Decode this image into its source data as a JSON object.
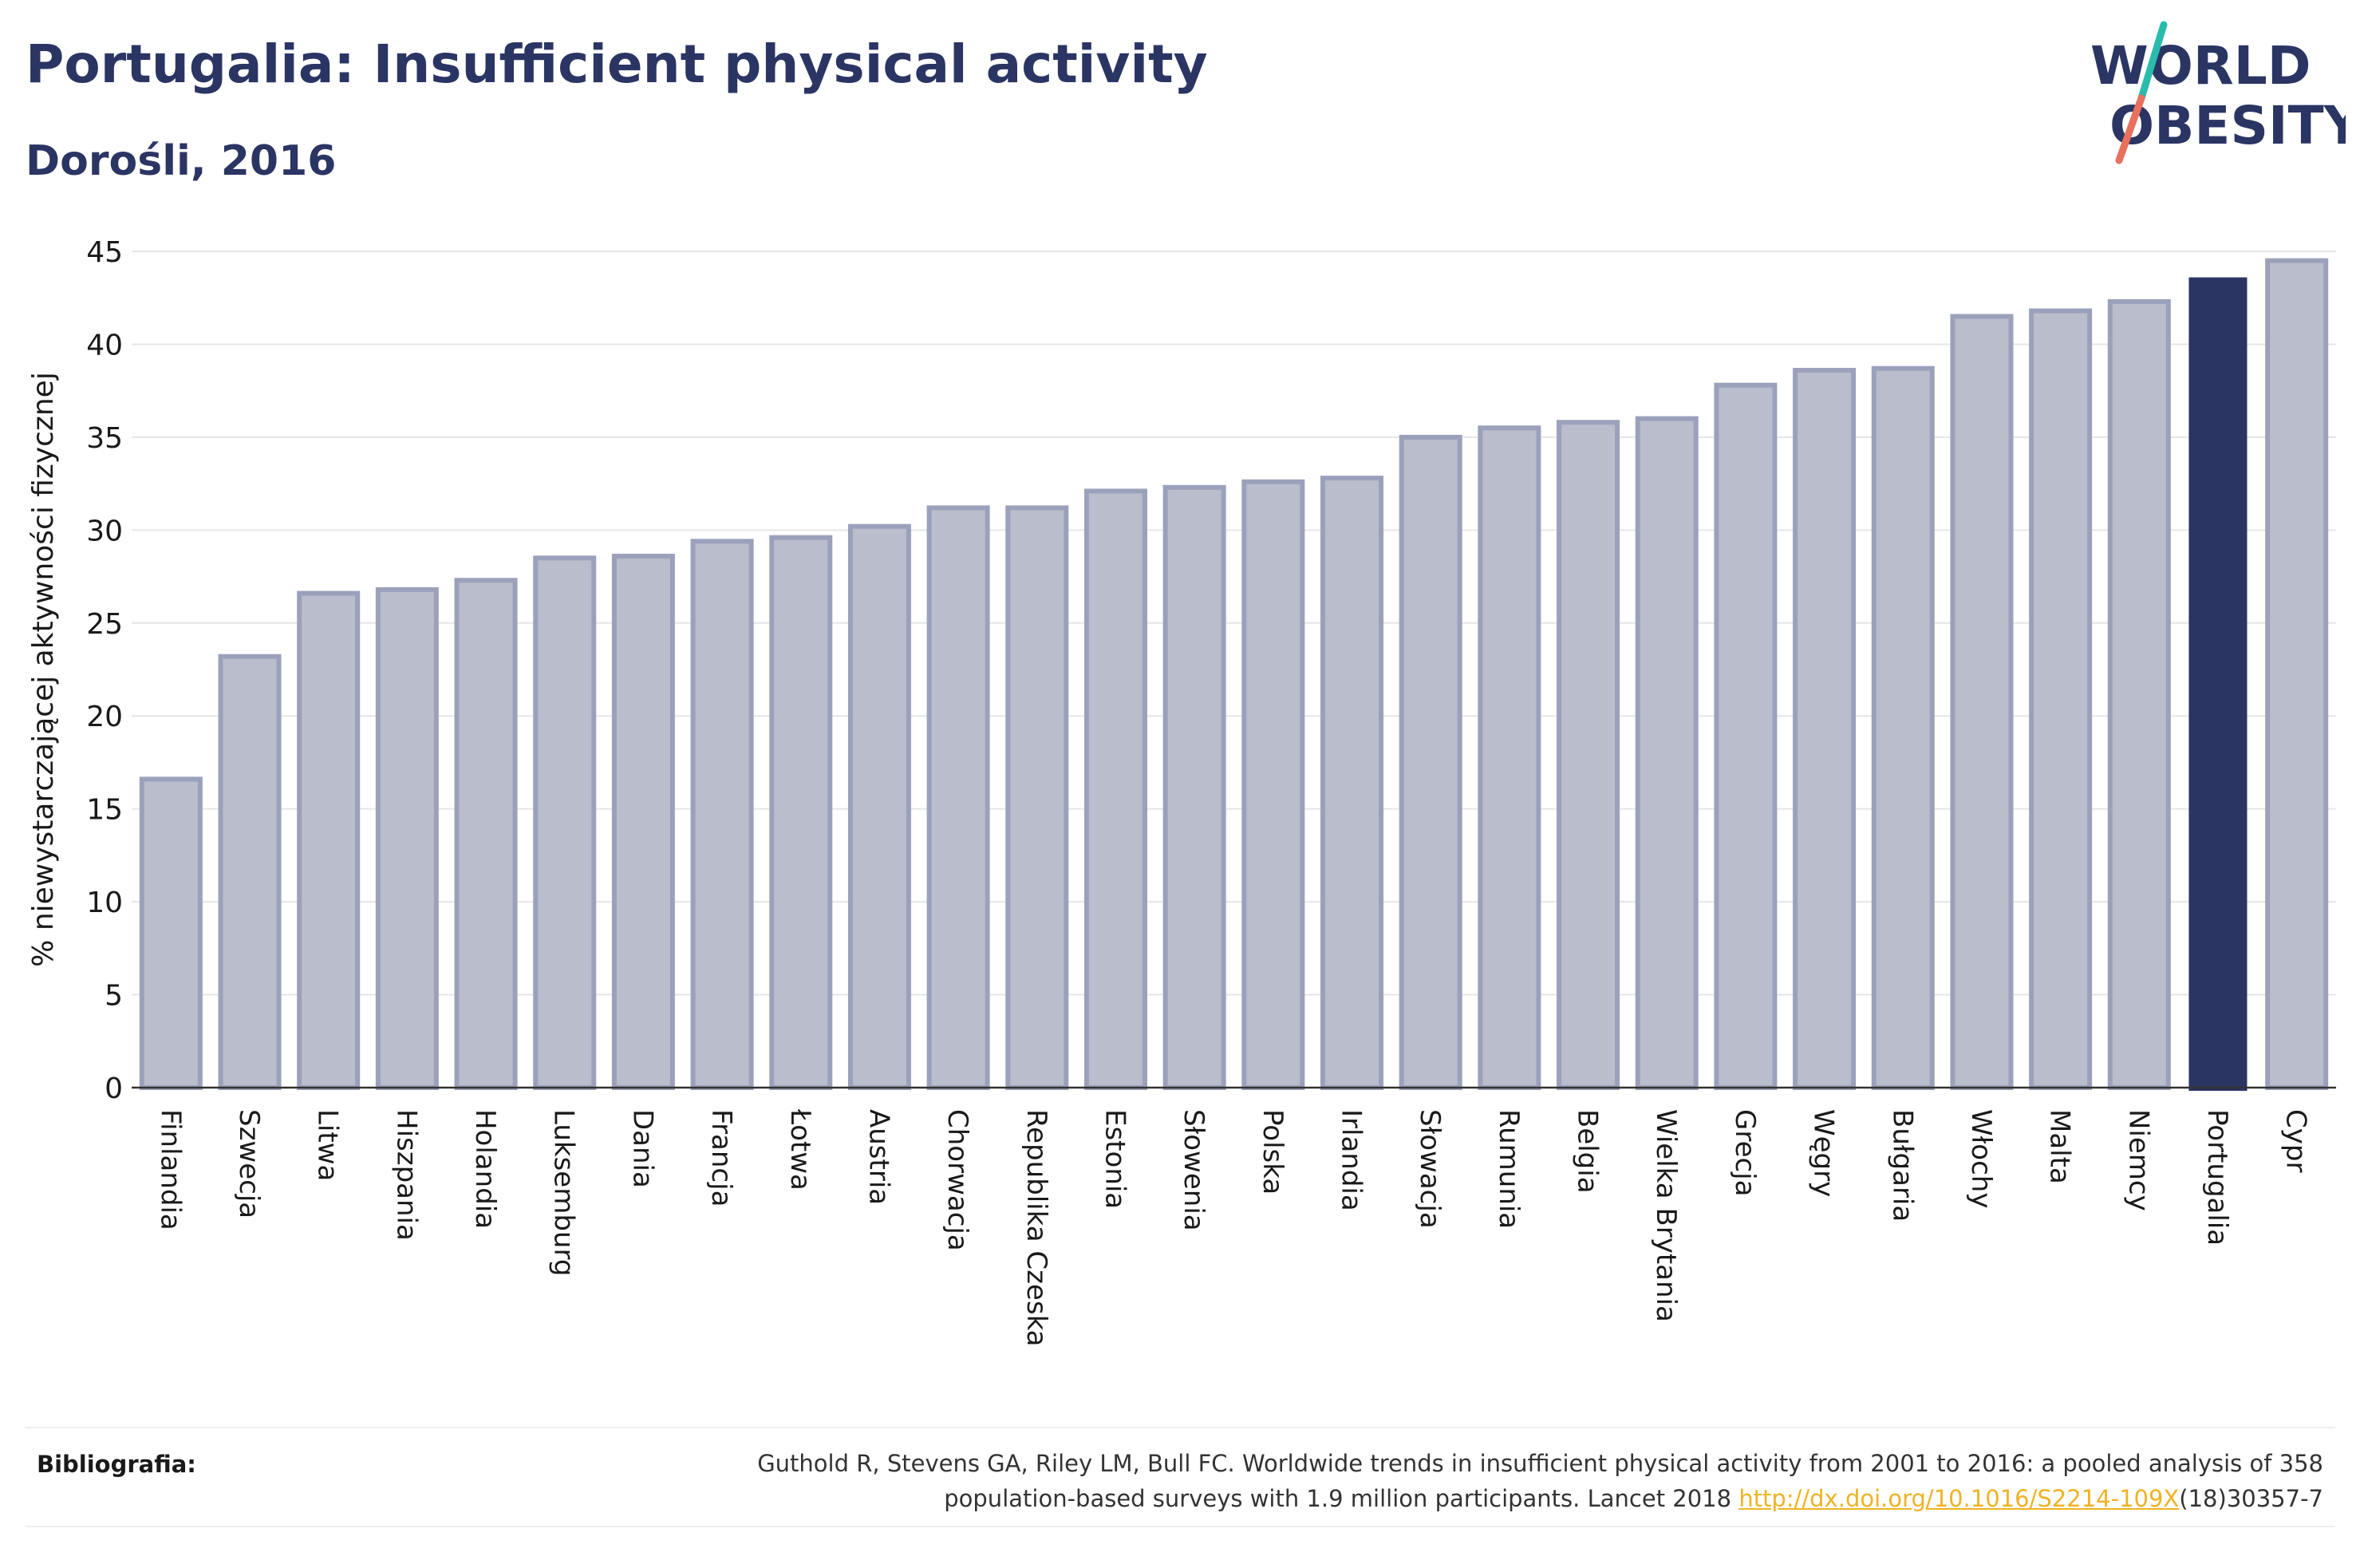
{
  "header": {
    "title": "Portugalia: Insufficient physical activity",
    "subtitle": "Dorośli, 2016"
  },
  "logo": {
    "line1": "WORLD",
    "line2": "OBESITY",
    "colors": {
      "text": "#2b3564",
      "slash_top": "#2bbbad",
      "slash_bottom": "#e8705e"
    }
  },
  "chart_data": {
    "type": "bar",
    "title": "Portugalia: Insufficient physical activity",
    "subtitle": "Dorośli, 2016",
    "xlabel": "",
    "ylabel": "% niewystarczającej aktywności fizycznej",
    "ylim": [
      0,
      45
    ],
    "yticks": [
      0,
      5,
      10,
      15,
      20,
      25,
      30,
      35,
      40,
      45
    ],
    "grid": true,
    "highlight": "Portugalia",
    "colors": {
      "bar": "#b9bdcc",
      "bar_edge": "#9ba1bb",
      "highlight": "#2b3564",
      "grid": "#e6e6e6"
    },
    "categories": [
      "Finlandia",
      "Szwecja",
      "Litwa",
      "Hiszpania",
      "Holandia",
      "Luksemburg",
      "Dania",
      "Francja",
      "Łotwa",
      "Austria",
      "Chorwacja",
      "Republika Czeska",
      "Estonia",
      "Słowenia",
      "Polska",
      "Irlandia",
      "Słowacja",
      "Rumunia",
      "Belgia",
      "Wielka Brytania",
      "Grecja",
      "Węgry",
      "Bułgaria",
      "Włochy",
      "Malta",
      "Niemcy",
      "Portugalia",
      "Cypr"
    ],
    "values": [
      16.6,
      23.2,
      26.6,
      26.8,
      27.3,
      28.5,
      28.6,
      29.4,
      29.6,
      30.2,
      31.2,
      31.2,
      32.1,
      32.3,
      32.6,
      32.8,
      35.0,
      35.5,
      35.8,
      36.0,
      37.8,
      38.6,
      38.7,
      41.5,
      41.8,
      42.3,
      43.6,
      44.5
    ]
  },
  "footer": {
    "label": "Bibliografia:",
    "text_line1": "Guthold R, Stevens GA, Riley LM, Bull FC. Worldwide trends in insufficient physical activity from 2001 to 2016: a pooled analysis of 358",
    "text_line2_prefix": "population-based surveys with 1.9 million participants. Lancet 2018 ",
    "link_text": "http://dx.doi.org/10.1016/S2214-109X",
    "text_line2_suffix": "(18)30357-7"
  }
}
